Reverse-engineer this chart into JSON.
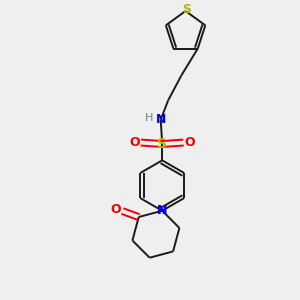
{
  "background_color": "#efefef",
  "bond_color": "#1a1a1a",
  "S_color": "#b8b800",
  "N_color": "#0000ee",
  "O_color": "#ee0000",
  "H_color": "#708090",
  "figsize": [
    3.0,
    3.0
  ],
  "dpi": 100,
  "xlim": [
    0,
    10
  ],
  "ylim": [
    0,
    10
  ]
}
